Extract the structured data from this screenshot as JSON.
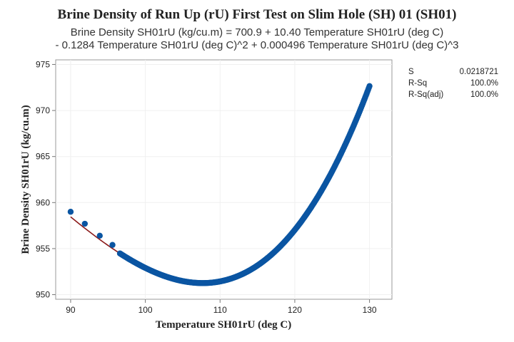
{
  "chart_data": {
    "type": "scatter",
    "title": "Brine Density of Run Up (rU) First Test on Slim Hole (SH) 01 (SH01)",
    "subtitle_line1": "Brine Density SH01rU (kg/cu.m) = 700.9 + 10.40 Temperature SH01rU (deg C)",
    "subtitle_line2": "- 0.1284 Temperature SH01rU (deg C)^2 + 0.000496 Temperature SH01rU (deg C)^3",
    "xlabel": "Temperature SH01rU (deg C)",
    "ylabel": "Brine Density SH01rU (kg/cu.m)",
    "xlim": [
      88,
      133
    ],
    "ylim": [
      949.5,
      975.5
    ],
    "x_ticks": [
      90,
      100,
      110,
      120,
      130
    ],
    "y_ticks": [
      950,
      955,
      960,
      965,
      970,
      975
    ],
    "grid": true,
    "fit": {
      "intercept": 700.9,
      "b1": 10.4,
      "b2": -0.1284,
      "b3": 0.000496,
      "color": "#8b1a1a"
    },
    "marker_color": "#0a55a2",
    "isolated_points": [
      {
        "x": 90.0,
        "y": 959.0
      },
      {
        "x": 91.9,
        "y": 957.7
      },
      {
        "x": 93.9,
        "y": 956.4
      },
      {
        "x": 95.6,
        "y": 955.4
      }
    ],
    "dense_range": {
      "x_start": 96.6,
      "x_end": 130.0,
      "count": 335
    },
    "stats": [
      {
        "label": "S",
        "value": "0.0218721"
      },
      {
        "label": "R-Sq",
        "value": "100.0%"
      },
      {
        "label": "R-Sq(adj)",
        "value": "100.0%"
      }
    ]
  }
}
